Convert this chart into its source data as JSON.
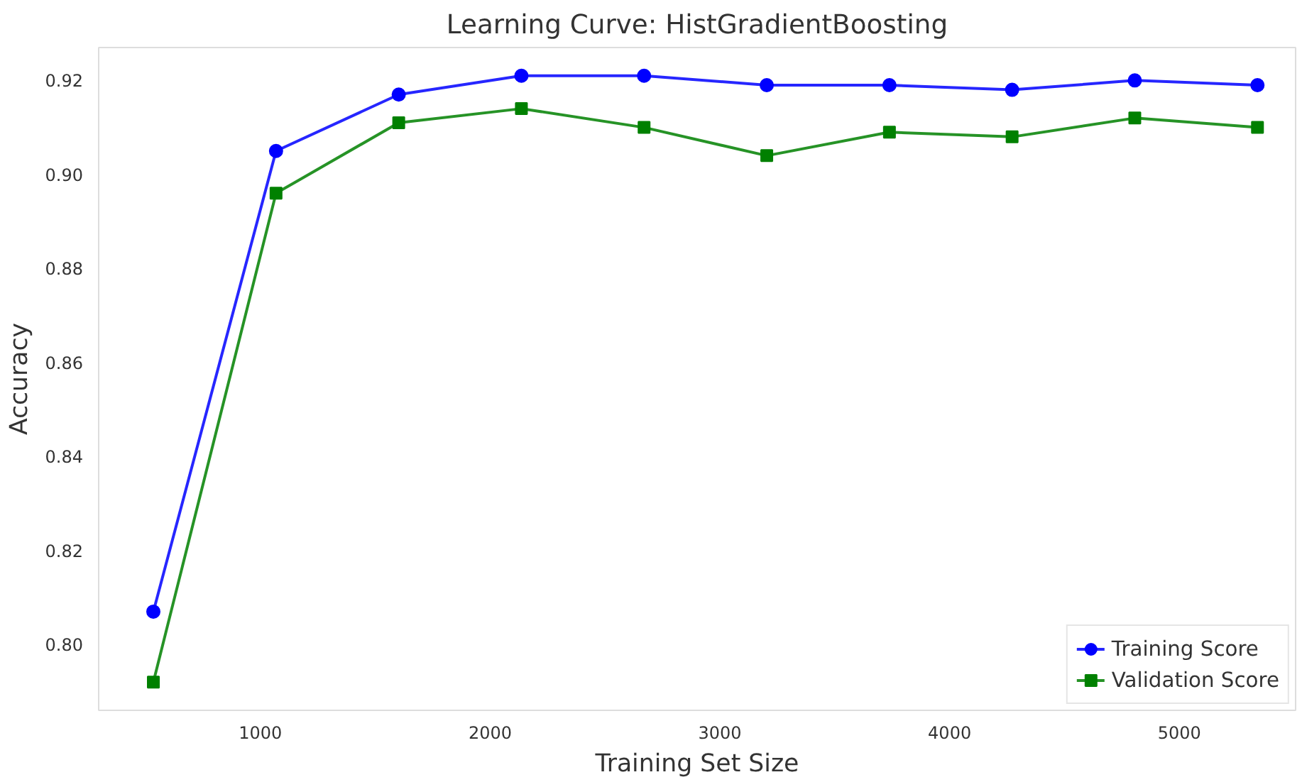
{
  "chart_data": {
    "type": "line",
    "title": "Learning Curve: HistGradientBoosting",
    "xlabel": "Training Set Size",
    "ylabel": "Accuracy",
    "x": [
      534,
      1068,
      1602,
      2136,
      2670,
      3204,
      3738,
      4272,
      4806,
      5340
    ],
    "series": [
      {
        "name": "Training Score",
        "color": "#0000ff",
        "marker": "circle",
        "values": [
          0.807,
          0.905,
          0.917,
          0.921,
          0.921,
          0.919,
          0.919,
          0.918,
          0.92,
          0.919
        ]
      },
      {
        "name": "Validation Score",
        "color": "#008000",
        "marker": "square",
        "values": [
          0.792,
          0.896,
          0.911,
          0.914,
          0.91,
          0.904,
          0.909,
          0.908,
          0.912,
          0.91
        ]
      }
    ],
    "xlim": [
      296,
      5506
    ],
    "ylim": [
      0.786,
      0.927
    ],
    "xticks": [
      1000,
      2000,
      3000,
      4000,
      5000
    ],
    "yticks": [
      {
        "value": 0.8,
        "label": "0.80"
      },
      {
        "value": 0.82,
        "label": "0.82"
      },
      {
        "value": 0.84,
        "label": "0.84"
      },
      {
        "value": 0.86,
        "label": "0.86"
      },
      {
        "value": 0.88,
        "label": "0.88"
      },
      {
        "value": 0.9,
        "label": "0.90"
      },
      {
        "value": 0.92,
        "label": "0.92"
      }
    ],
    "grid": false,
    "legend": "bottom right",
    "line_style": "solid"
  }
}
